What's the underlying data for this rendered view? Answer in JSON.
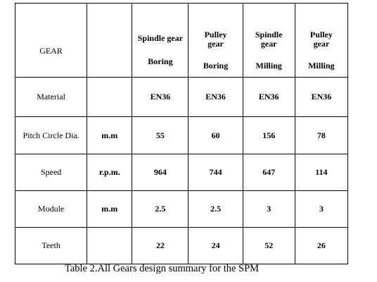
{
  "table": {
    "corner_label": "GEAR",
    "columns": [
      {
        "line1": "Spindle gear",
        "line2": "",
        "sub": "Boring"
      },
      {
        "line1": "Pulley",
        "line2": "gear",
        "sub": "Boring"
      },
      {
        "line1": "Spindle",
        "line2": "gear",
        "sub": "Milling"
      },
      {
        "line1": "Pulley",
        "line2": "gear",
        "sub": "Milling"
      }
    ],
    "rows": [
      {
        "label": "Material",
        "unit": "",
        "values": [
          "EN36",
          "EN36",
          "EN36",
          "EN36"
        ]
      },
      {
        "label": "Pitch Circle Dia.",
        "unit": "m.m",
        "values": [
          "55",
          "60",
          "156",
          "78"
        ]
      },
      {
        "label": "Speed",
        "unit": "r.p.m.",
        "values": [
          "964",
          "744",
          "647",
          "114"
        ]
      },
      {
        "label": "Module",
        "unit": "m.m",
        "values": [
          "2.5",
          "2.5",
          "3",
          "3"
        ]
      },
      {
        "label": "Teeth",
        "unit": "",
        "values": [
          "22",
          "24",
          "52",
          "26"
        ]
      }
    ]
  },
  "caption": "Table 2.All Gears design summary for the SPM"
}
